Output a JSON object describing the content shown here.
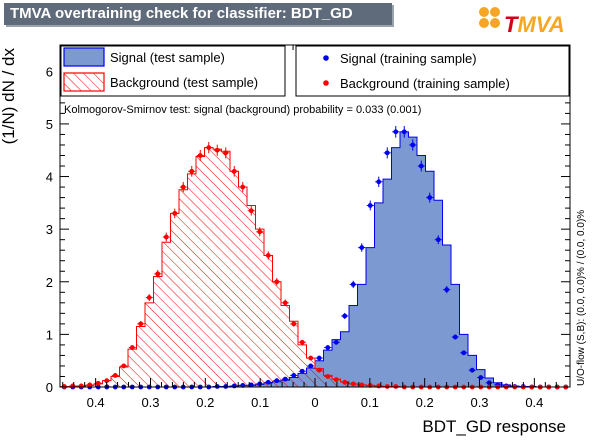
{
  "header": {
    "title": "TMVA overtraining check for classifier: BDT_GD",
    "logo_text": "TMVA"
  },
  "chart_data": {
    "type": "histogram",
    "title": "TMVA overtraining check for classifier: BDT_GD",
    "xlabel": "BDT_GD response",
    "ylabel": "(1/N) dN / dx",
    "xlim": [
      0.48,
      -0.45
    ],
    "ylim": [
      0,
      6.5
    ],
    "x_reversed": true,
    "x_ticks": [
      0.4,
      0.3,
      0.2,
      0.1,
      0,
      0.1,
      0.2,
      0.3,
      0.4
    ],
    "x_tick_values": [
      -0.4,
      -0.3,
      -0.2,
      -0.1,
      0,
      0.1,
      0.2,
      0.3,
      0.4
    ],
    "y_ticks": [
      0,
      1,
      2,
      3,
      4,
      5,
      6
    ],
    "bin_edges_start": -0.465,
    "bin_width": 0.0155,
    "ks_text": "Kolmogorov-Smirnov test: signal (background) probability = 0.033 (0.001)",
    "side_text": "U/O-flow (S,B): (0.0, 0.0)% / (0.0, 0.0)%",
    "legend": {
      "signal_test": "Signal (test sample)",
      "background_test": "Background (test sample)",
      "signal_train": "Signal (training sample)",
      "background_train": "Background (training sample)"
    },
    "series": [
      {
        "name": "Signal (test sample)",
        "style": "filled",
        "color": "#7d99d1",
        "edge": "#0000ee",
        "values": [
          0,
          0,
          0,
          0,
          0,
          0,
          0,
          0,
          0,
          0,
          0,
          0,
          0,
          0,
          0,
          0,
          0,
          0,
          0.01,
          0.01,
          0.02,
          0.03,
          0.03,
          0.05,
          0.08,
          0.1,
          0.13,
          0.18,
          0.26,
          0.36,
          0.5,
          0.7,
          0.9,
          1.05,
          1.55,
          1.95,
          2.65,
          3.5,
          3.95,
          4.55,
          4.85,
          4.75,
          4.4,
          4.1,
          3.55,
          2.7,
          1.95,
          1.0,
          0.6,
          0.33,
          0.17,
          0.08,
          0.04,
          0.02,
          0.01,
          0.01,
          0,
          0,
          0,
          0
        ]
      },
      {
        "name": "Background (test sample)",
        "style": "hatched",
        "color": "#ff0000",
        "values": [
          0.01,
          0.01,
          0.02,
          0.03,
          0.06,
          0.12,
          0.2,
          0.38,
          0.72,
          1.15,
          1.6,
          2.1,
          2.75,
          3.3,
          3.75,
          4.05,
          4.38,
          4.55,
          4.52,
          4.48,
          4.1,
          3.8,
          3.45,
          3.0,
          2.5,
          2.0,
          1.55,
          1.25,
          0.8,
          0.55,
          0.35,
          0.22,
          0.15,
          0.1,
          0.06,
          0.04,
          0.03,
          0.02,
          0.01,
          0.01,
          0,
          0,
          0,
          0,
          0,
          0,
          0,
          0,
          0,
          0,
          0,
          0,
          0,
          0,
          0,
          0,
          0,
          0,
          0,
          0
        ]
      },
      {
        "name": "Signal (training sample)",
        "style": "points",
        "color": "#0000ee",
        "values": [
          0,
          0,
          0,
          0,
          0,
          0,
          0,
          0,
          0,
          0,
          0,
          0,
          0,
          0,
          0,
          0,
          0,
          0,
          0.01,
          0.01,
          0.02,
          0.03,
          0.04,
          0.06,
          0.09,
          0.12,
          0.15,
          0.22,
          0.3,
          0.4,
          0.55,
          0.75,
          0.85,
          1.35,
          1.95,
          2.65,
          3.45,
          3.9,
          4.45,
          4.85,
          4.85,
          4.6,
          4.2,
          3.6,
          2.8,
          1.85,
          0.95,
          0.65,
          0.32,
          0.18,
          0.08,
          0.04,
          0.02,
          0.01,
          0.01,
          0,
          0,
          0,
          0,
          0
        ]
      },
      {
        "name": "Background (training sample)",
        "style": "points",
        "color": "#ff0000",
        "values": [
          0.01,
          0.02,
          0.02,
          0.04,
          0.07,
          0.12,
          0.22,
          0.4,
          0.75,
          1.2,
          1.7,
          2.15,
          2.85,
          3.3,
          3.8,
          4.1,
          4.4,
          4.55,
          4.5,
          4.45,
          4.1,
          3.8,
          3.35,
          2.95,
          2.5,
          2.0,
          1.6,
          1.2,
          0.85,
          0.55,
          0.32,
          0.2,
          0.14,
          0.09,
          0.06,
          0.04,
          0.03,
          0.02,
          0.01,
          0.01,
          0,
          0,
          0,
          0,
          0,
          0,
          0,
          0,
          0,
          0,
          0,
          0,
          0,
          0,
          0,
          0,
          0,
          0,
          0,
          0
        ]
      }
    ]
  }
}
